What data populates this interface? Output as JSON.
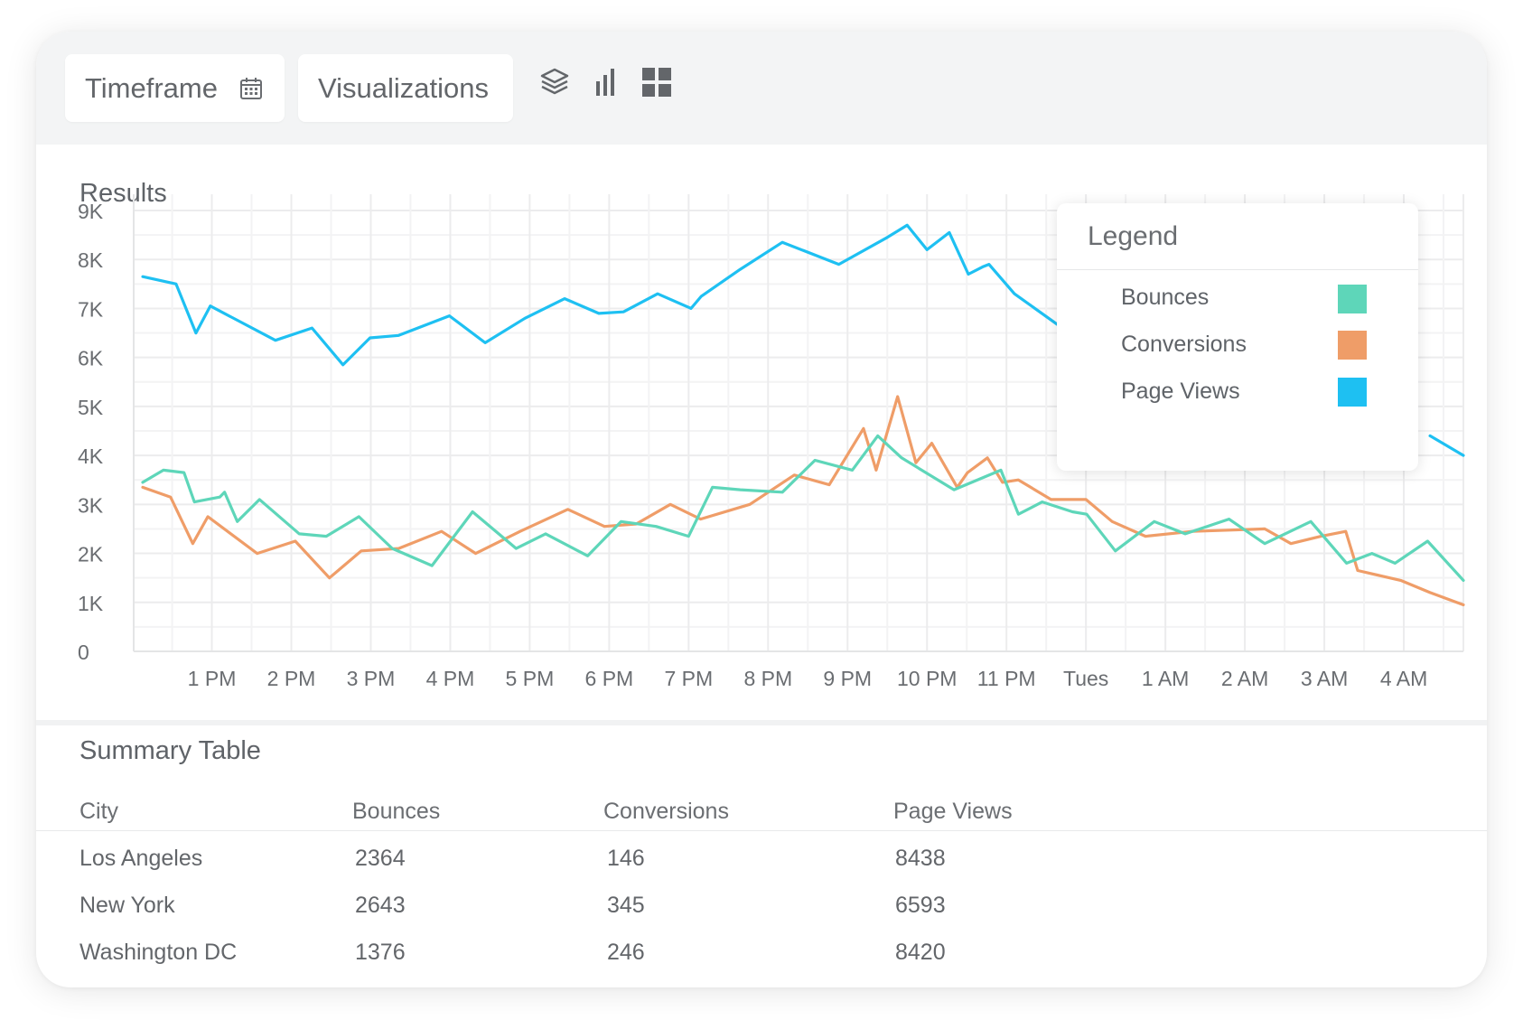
{
  "toolbar": {
    "timeframe_label": "Timeframe",
    "visualizations_label": "Visualizations",
    "icons": [
      "calendar-icon",
      "layers-icon",
      "bar-chart-icon",
      "grid-icon"
    ]
  },
  "results_title": "Results",
  "legend": {
    "title": "Legend",
    "items": [
      {
        "label": "Bounces",
        "color": "#5ed6b9"
      },
      {
        "label": "Conversions",
        "color": "#ef9d68"
      },
      {
        "label": "Page Views",
        "color": "#1ec0f2"
      }
    ]
  },
  "chart_data": {
    "type": "line",
    "x_ticks": [
      "1 PM",
      "2 PM",
      "3 PM",
      "4 PM",
      "5 PM",
      "6 PM",
      "7 PM",
      "8 PM",
      "9 PM",
      "10 PM",
      "11 PM",
      "Tues",
      "1 AM",
      "2 AM",
      "3 AM",
      "4 AM"
    ],
    "y_ticks": [
      "0",
      "1K",
      "2K",
      "3K",
      "4K",
      "5K",
      "6K",
      "7K",
      "8K",
      "9K"
    ],
    "ylim": [
      0,
      9000
    ],
    "xlim": [
      12.13,
      28.75
    ],
    "grid": true,
    "legend_position": "top-right",
    "series": [
      {
        "name": "Page Views",
        "color": "#1ec0f2",
        "x": [
          12.13,
          12.55,
          12.8,
          12.98,
          13.8,
          14.26,
          14.65,
          14.99,
          15.35,
          15.99,
          16.44,
          16.94,
          17.44,
          17.87,
          18.18,
          18.61,
          19.03,
          19.16,
          19.65,
          20.18,
          20.89,
          21.5,
          21.75,
          22.0,
          22.28,
          22.52,
          22.7,
          22.78,
          23.1,
          23.66,
          23.73
        ],
        "y": [
          7650,
          7500,
          6500,
          7050,
          6350,
          6600,
          5850,
          6400,
          6450,
          6850,
          6300,
          6800,
          7200,
          6900,
          6930,
          7300,
          7000,
          7250,
          7800,
          8350,
          7900,
          8450,
          8700,
          8200,
          8550,
          7700,
          7850,
          7900,
          7300,
          6650,
          6550
        ]
      },
      {
        "name": "Page Views (continued)",
        "color": "#1ec0f2",
        "x": [
          28.33,
          28.75
        ],
        "y": [
          4400,
          4000
        ]
      },
      {
        "name": "Bounces",
        "color": "#5ed6b9",
        "x": [
          12.13,
          12.39,
          12.65,
          12.78,
          13.1,
          13.16,
          13.32,
          13.6,
          14.1,
          14.44,
          14.85,
          15.27,
          15.77,
          16.28,
          16.83,
          17.2,
          17.73,
          18.15,
          18.59,
          19.0,
          19.3,
          19.65,
          20.18,
          20.59,
          21.06,
          21.38,
          21.68,
          22.34,
          22.93,
          23.15,
          23.45,
          23.83,
          24.01,
          24.37,
          24.86,
          25.25,
          25.8,
          26.25,
          26.83,
          27.28,
          27.6,
          27.89,
          28.3,
          28.75
        ],
        "y": [
          3450,
          3700,
          3650,
          3050,
          3150,
          3250,
          2650,
          3100,
          2400,
          2350,
          2750,
          2100,
          1750,
          2850,
          2100,
          2400,
          1950,
          2650,
          2550,
          2350,
          3350,
          3300,
          3250,
          3900,
          3700,
          4400,
          3950,
          3300,
          3700,
          2800,
          3050,
          2850,
          2800,
          2050,
          2650,
          2400,
          2700,
          2200,
          2650,
          1800,
          2000,
          1800,
          2250,
          1450
        ]
      },
      {
        "name": "Conversions",
        "color": "#ef9d68",
        "x": [
          12.13,
          12.48,
          12.76,
          12.95,
          13.57,
          14.05,
          14.48,
          14.88,
          15.35,
          15.89,
          16.32,
          16.88,
          17.48,
          17.94,
          18.34,
          18.77,
          19.15,
          19.77,
          20.33,
          20.77,
          21.2,
          21.36,
          21.63,
          21.86,
          22.06,
          22.38,
          22.51,
          22.76,
          22.95,
          23.15,
          23.56,
          24.0,
          24.33,
          24.75,
          25.34,
          26.25,
          26.58,
          26.96,
          27.27,
          27.42,
          27.96,
          28.33,
          28.75
        ],
        "y": [
          3350,
          3150,
          2200,
          2750,
          2000,
          2250,
          1500,
          2050,
          2100,
          2450,
          2000,
          2450,
          2900,
          2550,
          2600,
          3000,
          2700,
          3000,
          3600,
          3400,
          4550,
          3700,
          5200,
          3850,
          4250,
          3350,
          3650,
          3950,
          3450,
          3500,
          3100,
          3100,
          2650,
          2350,
          2450,
          2500,
          2200,
          2350,
          2450,
          1650,
          1450,
          1200,
          950
        ]
      }
    ]
  },
  "summary": {
    "title": "Summary Table",
    "columns": [
      "City",
      "Bounces",
      "Conversions",
      "Page Views"
    ],
    "rows": [
      [
        "Los Angeles",
        "2364",
        "146",
        "8438"
      ],
      [
        "New York",
        "2643",
        "345",
        "6593"
      ],
      [
        "Washington DC",
        "1376",
        "246",
        "8420"
      ]
    ]
  }
}
